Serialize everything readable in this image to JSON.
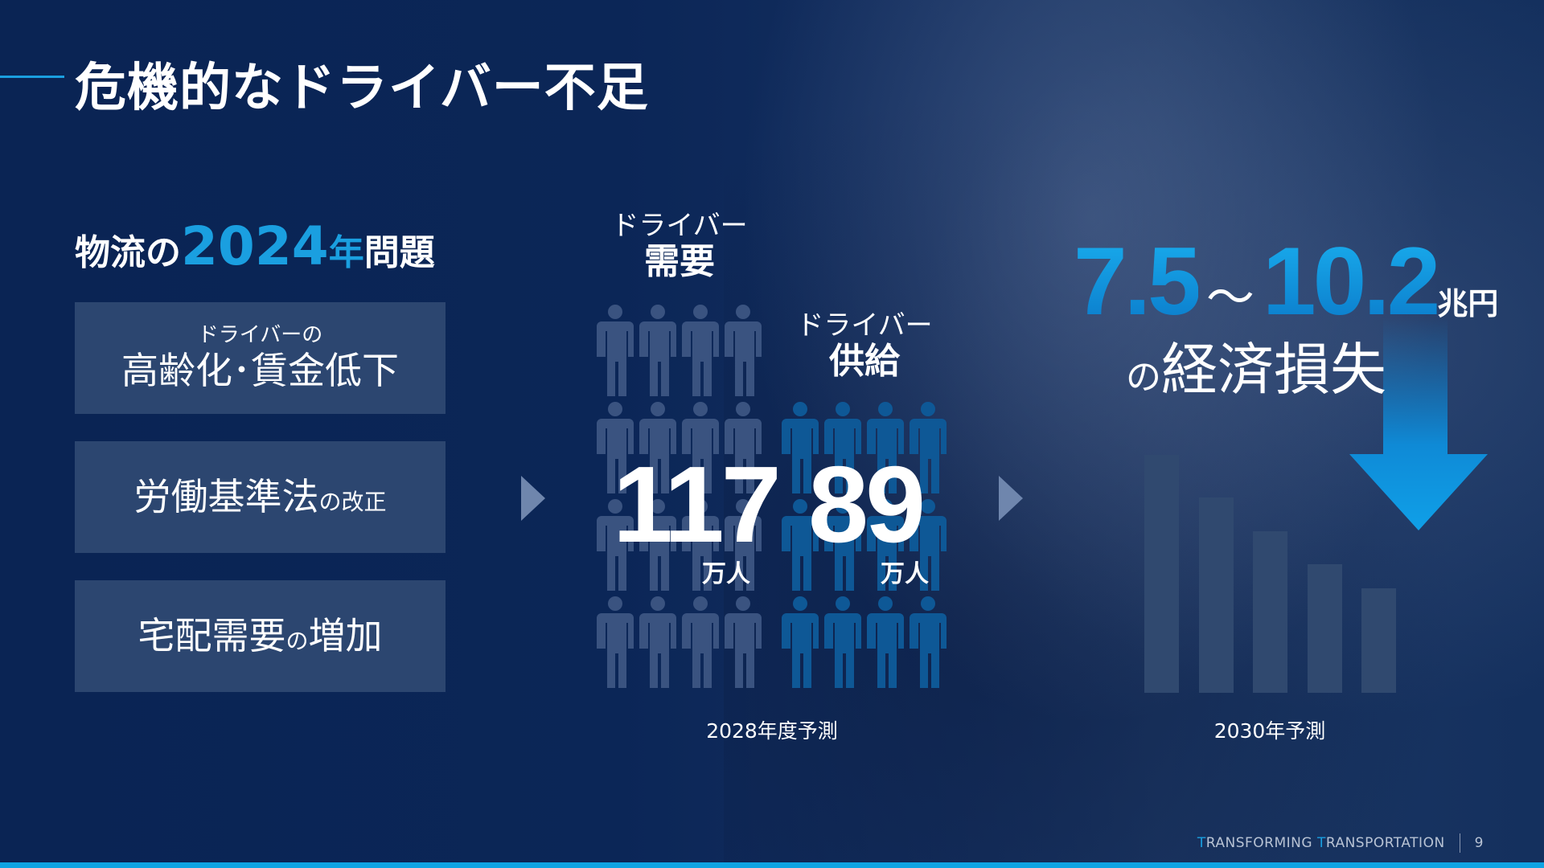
{
  "title": "危機的なドライバー不足",
  "subtitle": {
    "pre": "物流の",
    "year": "2024",
    "year_suffix": "年",
    "post": "問題"
  },
  "causes": [
    {
      "small": "ドライバーの",
      "main": "高齢化･賃金低下"
    },
    {
      "main": "労働基準法",
      "small": "の改正",
      "tail": ""
    },
    {
      "main": "宅配需要",
      "small": "の",
      "tail": "増加"
    }
  ],
  "demand": {
    "label_top": "ドライバー",
    "label": "需要",
    "value": "117",
    "unit": "万人",
    "figures": 16
  },
  "supply": {
    "label_top": "ドライバー",
    "label": "供給",
    "value": "89",
    "unit": "万人",
    "figures": 12
  },
  "forecast_2028": "2028年度予測",
  "loss": {
    "low": "7.5",
    "sep": "～",
    "high": "10.2",
    "unit": "兆円",
    "pre": "の",
    "text": "経済損失"
  },
  "forecast_2030": "2030年予測",
  "bar_levels": [
    100,
    82,
    68,
    54,
    44
  ],
  "footer": {
    "t1": "T",
    "brand1": "RANSFORMING ",
    "t2": "T",
    "brand2": "RANSPORTATION",
    "page": "9"
  },
  "colors": {
    "accent": "#1a9fe0",
    "navy": "#0b2657",
    "box": "#2c4670",
    "demand_figure": "#3a5380",
    "supply_figure": "#0e5896"
  }
}
